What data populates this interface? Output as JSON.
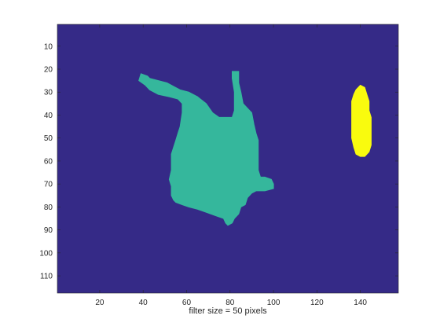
{
  "chart_data": {
    "type": "heatmap",
    "title": "",
    "xlabel": "filter size = 50 pixels",
    "ylabel": "",
    "xlim": [
      0.5,
      157.5
    ],
    "ylim": [
      0.5,
      117.5
    ],
    "y_reversed": true,
    "xticks": [
      20,
      40,
      60,
      80,
      100,
      120,
      140
    ],
    "yticks": [
      10,
      20,
      30,
      40,
      50,
      60,
      70,
      80,
      90,
      100,
      110
    ],
    "grid": false,
    "legend": "none",
    "colormap": "parula",
    "background_color": "#352a87",
    "regions": [
      {
        "label_value": 1,
        "color": "#35b79c",
        "outline": [
          [
            39,
            22
          ],
          [
            42,
            23
          ],
          [
            43,
            24
          ],
          [
            47,
            25
          ],
          [
            51,
            26
          ],
          [
            53,
            27
          ],
          [
            55,
            28
          ],
          [
            57,
            29
          ],
          [
            61,
            30
          ],
          [
            65,
            32
          ],
          [
            69,
            35
          ],
          [
            72,
            39
          ],
          [
            75,
            41
          ],
          [
            78,
            41
          ],
          [
            81,
            41
          ],
          [
            82,
            38
          ],
          [
            82,
            30
          ],
          [
            81,
            24
          ],
          [
            81,
            21
          ],
          [
            84,
            21
          ],
          [
            84,
            26
          ],
          [
            85,
            30
          ],
          [
            86,
            35
          ],
          [
            88,
            37
          ],
          [
            90,
            39
          ],
          [
            91,
            44
          ],
          [
            92,
            48
          ],
          [
            93,
            51
          ],
          [
            93,
            56
          ],
          [
            93,
            60
          ],
          [
            93,
            64
          ],
          [
            94,
            67
          ],
          [
            96,
            67
          ],
          [
            99,
            68
          ],
          [
            100,
            70
          ],
          [
            100,
            72
          ],
          [
            96,
            73
          ],
          [
            92,
            73
          ],
          [
            90,
            74
          ],
          [
            88,
            76
          ],
          [
            87,
            79
          ],
          [
            85,
            80
          ],
          [
            84,
            83
          ],
          [
            82,
            85
          ],
          [
            81,
            87
          ],
          [
            79,
            88
          ],
          [
            78,
            87
          ],
          [
            77,
            85
          ],
          [
            74,
            84
          ],
          [
            71,
            83
          ],
          [
            68,
            82
          ],
          [
            65,
            81
          ],
          [
            61,
            80
          ],
          [
            58,
            79
          ],
          [
            55,
            78
          ],
          [
            54,
            77
          ],
          [
            53,
            75
          ],
          [
            53,
            71
          ],
          [
            52,
            68
          ],
          [
            53,
            64
          ],
          [
            53,
            60
          ],
          [
            53,
            57
          ],
          [
            54,
            54
          ],
          [
            55,
            51
          ],
          [
            56,
            48
          ],
          [
            57,
            45
          ],
          [
            58,
            39
          ],
          [
            58,
            35
          ],
          [
            56,
            33
          ],
          [
            52,
            32
          ],
          [
            47,
            31
          ],
          [
            43,
            29
          ],
          [
            41,
            27
          ],
          [
            38,
            25
          ]
        ]
      },
      {
        "label_value": 2,
        "color": "#f9fb0e",
        "outline": [
          [
            140,
            27
          ],
          [
            142,
            28
          ],
          [
            143,
            31
          ],
          [
            144,
            34
          ],
          [
            144,
            38
          ],
          [
            145,
            41
          ],
          [
            145,
            45
          ],
          [
            145,
            49
          ],
          [
            145,
            53
          ],
          [
            144,
            56
          ],
          [
            142,
            58
          ],
          [
            140,
            58
          ],
          [
            138,
            57
          ],
          [
            137,
            54
          ],
          [
            136,
            50
          ],
          [
            136,
            46
          ],
          [
            136,
            42
          ],
          [
            136,
            38
          ],
          [
            136,
            34
          ],
          [
            137,
            31
          ],
          [
            138,
            29
          ]
        ]
      }
    ]
  }
}
